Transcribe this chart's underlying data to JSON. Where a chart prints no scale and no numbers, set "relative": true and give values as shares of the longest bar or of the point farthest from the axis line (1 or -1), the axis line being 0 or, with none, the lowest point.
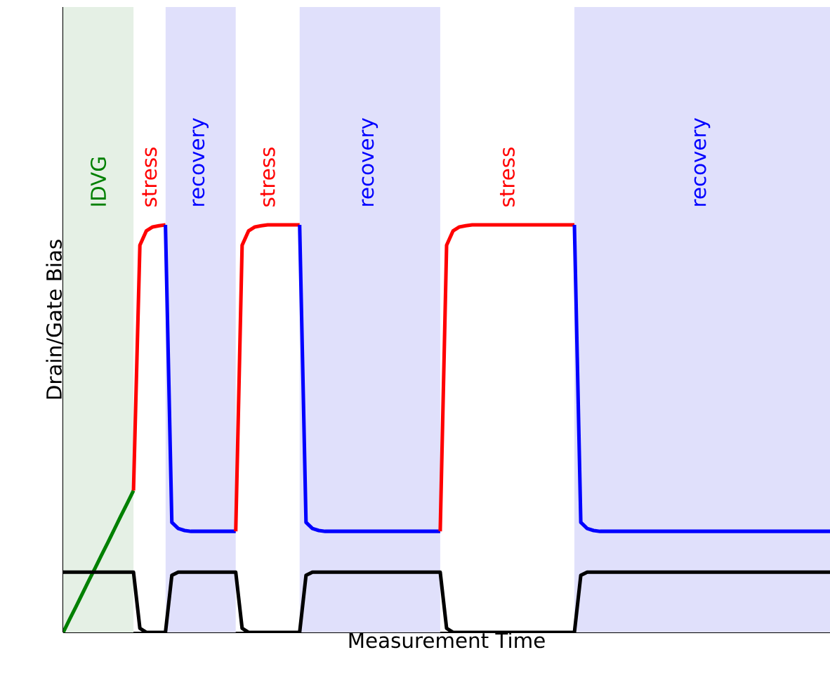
{
  "chart_data": {
    "type": "line",
    "relative": true,
    "xlabel": "Measurement Time",
    "ylabel": "Drain/Gate Bias",
    "tick_labels": false,
    "marker": "none",
    "categories": [
      null,
      null,
      null,
      null,
      null,
      null,
      null,
      null,
      null,
      null,
      null,
      null,
      null,
      null,
      null,
      null,
      null,
      null,
      null,
      null,
      null,
      null,
      null,
      null,
      null,
      null,
      null,
      null,
      null,
      null,
      null,
      null,
      null,
      null,
      null,
      null,
      null,
      null,
      null,
      null,
      null,
      null,
      null,
      null,
      null,
      null,
      null,
      null,
      null,
      null,
      null,
      null,
      null,
      null,
      null,
      null,
      null,
      null,
      null,
      null,
      null,
      null,
      null,
      null,
      null,
      null,
      null,
      null,
      null,
      null,
      null,
      null,
      null,
      null,
      null,
      null,
      null,
      null,
      null,
      null,
      null,
      null,
      null,
      null,
      null,
      null,
      null,
      null,
      null,
      null,
      null,
      null,
      null,
      null,
      null,
      null,
      null,
      null,
      null,
      null,
      null,
      null,
      null,
      null,
      null,
      null,
      null,
      null,
      null,
      null,
      null,
      null,
      null,
      null,
      null,
      null,
      null,
      null,
      null,
      null,
      null
    ],
    "series": [
      {
        "color": "#008000",
        "values": [
          0,
          0.032,
          0.063,
          0.095,
          0.127,
          0.158,
          0.19,
          0.221,
          0.253,
          0.285,
          0.316,
          0.348,
          null,
          null,
          null,
          null,
          null,
          null,
          null,
          null,
          null,
          null,
          null,
          null,
          null,
          null,
          null,
          null,
          null,
          null,
          null,
          null,
          null,
          null,
          null,
          null,
          null,
          null,
          null,
          null,
          null,
          null,
          null,
          null,
          null,
          null,
          null,
          null,
          null,
          null,
          null,
          null,
          null,
          null,
          null,
          null,
          null,
          null,
          null,
          null,
          null,
          null,
          null,
          null,
          null,
          null,
          null,
          null,
          null,
          null,
          null,
          null,
          null,
          null,
          null,
          null,
          null,
          null,
          null,
          null,
          null,
          null,
          null,
          null,
          null,
          null,
          null,
          null,
          null,
          null,
          null,
          null,
          null,
          null,
          null,
          null,
          null,
          null,
          null,
          null,
          null,
          null,
          null,
          null,
          null,
          null,
          null,
          null,
          null,
          null,
          null,
          null,
          null,
          null,
          null,
          null,
          null,
          null,
          null,
          null,
          null
        ]
      },
      {
        "color": "#ff0000",
        "values": [
          null,
          null,
          null,
          null,
          null,
          null,
          null,
          null,
          null,
          null,
          null,
          0.348,
          0.95,
          0.985,
          0.995,
          0.998,
          1.0,
          null,
          null,
          null,
          null,
          null,
          null,
          null,
          null,
          null,
          null,
          null,
          null,
          null,
          null,
          null,
          null,
          null,
          null,
          null,
          null,
          null,
          null,
          null,
          null,
          null,
          null,
          null,
          null,
          null,
          null,
          null,
          null,
          null,
          null,
          null,
          null,
          null,
          null,
          null,
          null,
          null,
          null,
          null,
          null,
          null,
          null,
          null,
          null,
          null,
          null,
          null,
          null,
          null,
          null,
          null,
          null,
          null,
          null,
          null,
          null,
          null,
          null,
          null,
          null,
          null,
          null,
          null,
          null,
          null,
          null,
          null,
          null,
          null,
          null,
          null,
          null,
          null,
          null,
          null,
          null,
          null,
          null,
          null,
          null,
          null,
          null,
          null,
          null,
          null,
          null,
          null,
          null,
          null,
          null,
          null,
          null,
          null,
          null,
          null,
          null,
          null,
          null,
          null,
          null
        ]
      },
      {
        "color": "#0000ff",
        "values": [
          null,
          null,
          null,
          null,
          null,
          null,
          null,
          null,
          null,
          null,
          null,
          null,
          null,
          null,
          null,
          null,
          1.0,
          0.27,
          0.255,
          0.25,
          0.248,
          0.248,
          0.248,
          0.248,
          0.248,
          0.248,
          0.248,
          0.248,
          null,
          null,
          null,
          null,
          null,
          null,
          null,
          null,
          null,
          null,
          null,
          null,
          null,
          null,
          null,
          null,
          null,
          null,
          null,
          null,
          null,
          null,
          null,
          null,
          null,
          null,
          null,
          null,
          null,
          null,
          null,
          null,
          null,
          null,
          null,
          null,
          null,
          null,
          null,
          null,
          null,
          null,
          null,
          null,
          null,
          null,
          null,
          null,
          null,
          null,
          null,
          null,
          null,
          null,
          null,
          null,
          null,
          null,
          null,
          null,
          null,
          null,
          null,
          null,
          null,
          null,
          null,
          null,
          null,
          null,
          null,
          null,
          null,
          null,
          null,
          null,
          null,
          null,
          null,
          null,
          null,
          null,
          null,
          null,
          null,
          null,
          null,
          null,
          null,
          null,
          null,
          null,
          null
        ]
      },
      {
        "color": "#ff0000",
        "values": [
          null,
          null,
          null,
          null,
          null,
          null,
          null,
          null,
          null,
          null,
          null,
          null,
          null,
          null,
          null,
          null,
          null,
          null,
          null,
          null,
          null,
          null,
          null,
          null,
          null,
          null,
          null,
          0.248,
          0.95,
          0.985,
          0.995,
          0.998,
          1.0,
          1.0,
          1.0,
          1.0,
          1.0,
          1.0,
          null,
          null,
          null,
          null,
          null,
          null,
          null,
          null,
          null,
          null,
          null,
          null,
          null,
          null,
          null,
          null,
          null,
          null,
          null,
          null,
          null,
          null,
          null,
          null,
          null,
          null,
          null,
          null,
          null,
          null,
          null,
          null,
          null,
          null,
          null,
          null,
          null,
          null,
          null,
          null,
          null,
          null,
          null,
          null,
          null,
          null,
          null,
          null,
          null,
          null,
          null,
          null,
          null,
          null,
          null,
          null,
          null,
          null,
          null,
          null,
          null,
          null,
          null,
          null,
          null,
          null,
          null,
          null,
          null,
          null,
          null,
          null,
          null,
          null,
          null,
          null,
          null,
          null,
          null,
          null,
          null,
          null,
          null
        ]
      },
      {
        "color": "#0000ff",
        "values": [
          null,
          null,
          null,
          null,
          null,
          null,
          null,
          null,
          null,
          null,
          null,
          null,
          null,
          null,
          null,
          null,
          null,
          null,
          null,
          null,
          null,
          null,
          null,
          null,
          null,
          null,
          null,
          null,
          null,
          null,
          null,
          null,
          null,
          null,
          null,
          null,
          null,
          1.0,
          0.27,
          0.255,
          0.25,
          0.248,
          0.248,
          0.248,
          0.248,
          0.248,
          0.248,
          0.248,
          0.248,
          0.248,
          0.248,
          0.248,
          0.248,
          0.248,
          0.248,
          0.248,
          0.248,
          0.248,
          0.248,
          0.248,
          null,
          null,
          null,
          null,
          null,
          null,
          null,
          null,
          null,
          null,
          null,
          null,
          null,
          null,
          null,
          null,
          null,
          null,
          null,
          null,
          null,
          null,
          null,
          null,
          null,
          null,
          null,
          null,
          null,
          null,
          null,
          null,
          null,
          null,
          null,
          null,
          null,
          null,
          null,
          null,
          null,
          null,
          null,
          null,
          null,
          null,
          null,
          null,
          null,
          null,
          null,
          null,
          null,
          null,
          null,
          null,
          null,
          null,
          null,
          null,
          null
        ]
      },
      {
        "color": "#ff0000",
        "values": [
          null,
          null,
          null,
          null,
          null,
          null,
          null,
          null,
          null,
          null,
          null,
          null,
          null,
          null,
          null,
          null,
          null,
          null,
          null,
          null,
          null,
          null,
          null,
          null,
          null,
          null,
          null,
          null,
          null,
          null,
          null,
          null,
          null,
          null,
          null,
          null,
          null,
          null,
          null,
          null,
          null,
          null,
          null,
          null,
          null,
          null,
          null,
          null,
          null,
          null,
          null,
          null,
          null,
          null,
          null,
          null,
          null,
          null,
          null,
          0.248,
          0.95,
          0.985,
          0.995,
          0.998,
          1.0,
          1.0,
          1.0,
          1.0,
          1.0,
          1.0,
          1.0,
          1.0,
          1.0,
          1.0,
          1.0,
          1.0,
          1.0,
          1.0,
          1.0,
          1.0,
          1.0,
          null,
          null,
          null,
          null,
          null,
          null,
          null,
          null,
          null,
          null,
          null,
          null,
          null,
          null,
          null,
          null,
          null,
          null,
          null,
          null,
          null,
          null,
          null,
          null,
          null,
          null,
          null,
          null,
          null,
          null,
          null,
          null,
          null,
          null,
          null,
          null,
          null,
          null,
          null,
          null
        ]
      },
      {
        "color": "#0000ff",
        "values": [
          null,
          null,
          null,
          null,
          null,
          null,
          null,
          null,
          null,
          null,
          null,
          null,
          null,
          null,
          null,
          null,
          null,
          null,
          null,
          null,
          null,
          null,
          null,
          null,
          null,
          null,
          null,
          null,
          null,
          null,
          null,
          null,
          null,
          null,
          null,
          null,
          null,
          null,
          null,
          null,
          null,
          null,
          null,
          null,
          null,
          null,
          null,
          null,
          null,
          null,
          null,
          null,
          null,
          null,
          null,
          null,
          null,
          null,
          null,
          null,
          null,
          null,
          null,
          null,
          null,
          null,
          null,
          null,
          null,
          null,
          null,
          null,
          null,
          null,
          null,
          null,
          null,
          null,
          null,
          null,
          1.0,
          0.27,
          0.255,
          0.25,
          0.248,
          0.248,
          0.248,
          0.248,
          0.248,
          0.248,
          0.248,
          0.248,
          0.248,
          0.248,
          0.248,
          0.248,
          0.248,
          0.248,
          0.248,
          0.248,
          0.248,
          0.248,
          0.248,
          0.248,
          0.248,
          0.248,
          0.248,
          0.248,
          0.248,
          0.248,
          0.248,
          0.248,
          0.248,
          0.248,
          0.248,
          0.248,
          0.248,
          0.248,
          0.248,
          0.248,
          0.248
        ]
      },
      {
        "color": "#000000",
        "values": [
          0.148,
          0.148,
          0.148,
          0.148,
          0.148,
          0.148,
          0.148,
          0.148,
          0.148,
          0.148,
          0.148,
          0.148,
          0.01,
          0,
          0,
          0,
          0,
          0.14,
          0.148,
          0.148,
          0.148,
          0.148,
          0.148,
          0.148,
          0.148,
          0.148,
          0.148,
          0.148,
          0.01,
          0,
          0,
          0,
          0,
          0,
          0,
          0,
          0,
          0,
          0.14,
          0.148,
          0.148,
          0.148,
          0.148,
          0.148,
          0.148,
          0.148,
          0.148,
          0.148,
          0.148,
          0.148,
          0.148,
          0.148,
          0.148,
          0.148,
          0.148,
          0.148,
          0.148,
          0.148,
          0.148,
          0.148,
          0.01,
          0,
          0,
          0,
          0,
          0,
          0,
          0,
          0,
          0,
          0,
          0,
          0,
          0,
          0,
          0,
          0,
          0,
          0,
          0,
          0,
          0.14,
          0.148,
          0.148,
          0.148,
          0.148,
          0.148,
          0.148,
          0.148,
          0.148,
          0.148,
          0.148,
          0.148,
          0.148,
          0.148,
          0.148,
          0.148,
          0.148,
          0.148,
          0.148,
          0.148,
          0.148,
          0.148,
          0.148,
          0.148,
          0.148,
          0.148,
          0.148,
          0.148,
          0.148,
          0.148,
          0.148,
          0.148,
          0.148,
          0.148,
          0.148,
          0.148,
          0.148,
          0.148,
          0.148,
          0.148
        ]
      }
    ],
    "annotations": [
      "IDVG",
      "stress",
      "recovery",
      "stress",
      "recovery",
      "stress",
      "recovery"
    ]
  }
}
